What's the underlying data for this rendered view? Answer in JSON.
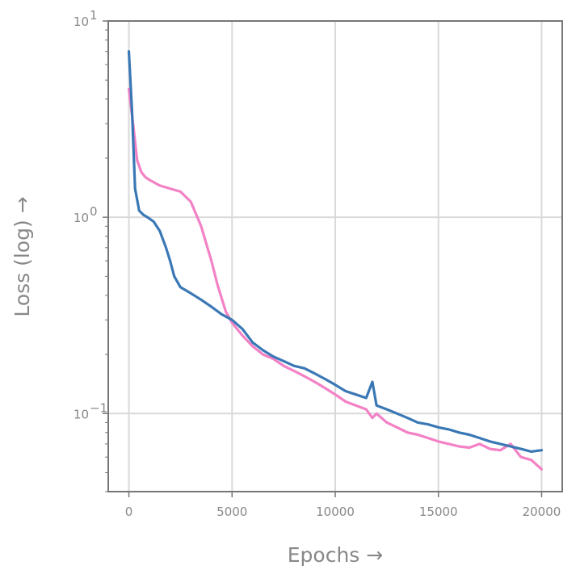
{
  "chart_data": {
    "type": "line",
    "title": "",
    "xlabel": "Epochs →",
    "ylabel": "Loss (log) →",
    "xlim": [
      -1000,
      21000
    ],
    "ylim": [
      0.04,
      10
    ],
    "yscale": "log",
    "grid": true,
    "legend": "none",
    "x_ticks": [
      {
        "value": 0,
        "label": "0"
      },
      {
        "value": 5000,
        "label": "5000"
      },
      {
        "value": 10000,
        "label": "10000"
      },
      {
        "value": 15000,
        "label": "15000"
      },
      {
        "value": 20000,
        "label": "20000"
      }
    ],
    "y_ticks": [
      {
        "value": 0.1,
        "base": "10",
        "exp": "−1"
      },
      {
        "value": 1,
        "base": "10",
        "exp": "0"
      },
      {
        "value": 10,
        "base": "10",
        "exp": "1"
      }
    ],
    "series": [
      {
        "color": "#f381c6",
        "x": [
          0,
          200,
          400,
          600,
          800,
          1000,
          1500,
          2000,
          2500,
          3000,
          3500,
          4000,
          4300,
          4700,
          5000,
          5500,
          6000,
          6500,
          7000,
          7500,
          8000,
          8500,
          9000,
          9500,
          10000,
          10500,
          11000,
          11500,
          11800,
          12000,
          12500,
          13000,
          13500,
          14000,
          14500,
          15000,
          15500,
          16000,
          16500,
          17000,
          17500,
          18000,
          18500,
          19000,
          19500,
          20000
        ],
        "y": [
          4.5,
          3.0,
          1.95,
          1.7,
          1.6,
          1.55,
          1.45,
          1.4,
          1.35,
          1.2,
          0.9,
          0.6,
          0.45,
          0.33,
          0.29,
          0.25,
          0.22,
          0.2,
          0.19,
          0.175,
          0.165,
          0.155,
          0.145,
          0.135,
          0.125,
          0.115,
          0.11,
          0.105,
          0.095,
          0.1,
          0.09,
          0.085,
          0.08,
          0.078,
          0.075,
          0.072,
          0.07,
          0.068,
          0.067,
          0.07,
          0.066,
          0.065,
          0.07,
          0.06,
          0.058,
          0.052
        ]
      },
      {
        "color": "#3a78b5",
        "x": [
          0,
          150,
          300,
          500,
          700,
          900,
          1200,
          1500,
          1800,
          2000,
          2200,
          2500,
          3000,
          3500,
          4000,
          4500,
          5000,
          5500,
          6000,
          6500,
          7000,
          7500,
          8000,
          8500,
          9000,
          9500,
          10000,
          10500,
          11000,
          11500,
          11800,
          12000,
          12500,
          13000,
          13500,
          14000,
          14500,
          15000,
          15500,
          16000,
          16500,
          17000,
          17500,
          18000,
          18500,
          19000,
          19500,
          20000
        ],
        "y": [
          7.0,
          3.5,
          1.4,
          1.08,
          1.03,
          1.0,
          0.95,
          0.85,
          0.7,
          0.6,
          0.5,
          0.44,
          0.41,
          0.38,
          0.35,
          0.32,
          0.3,
          0.27,
          0.23,
          0.21,
          0.195,
          0.185,
          0.175,
          0.17,
          0.16,
          0.15,
          0.14,
          0.13,
          0.125,
          0.12,
          0.145,
          0.11,
          0.105,
          0.1,
          0.095,
          0.09,
          0.088,
          0.085,
          0.083,
          0.08,
          0.078,
          0.075,
          0.072,
          0.07,
          0.068,
          0.066,
          0.064,
          0.065
        ]
      }
    ]
  }
}
